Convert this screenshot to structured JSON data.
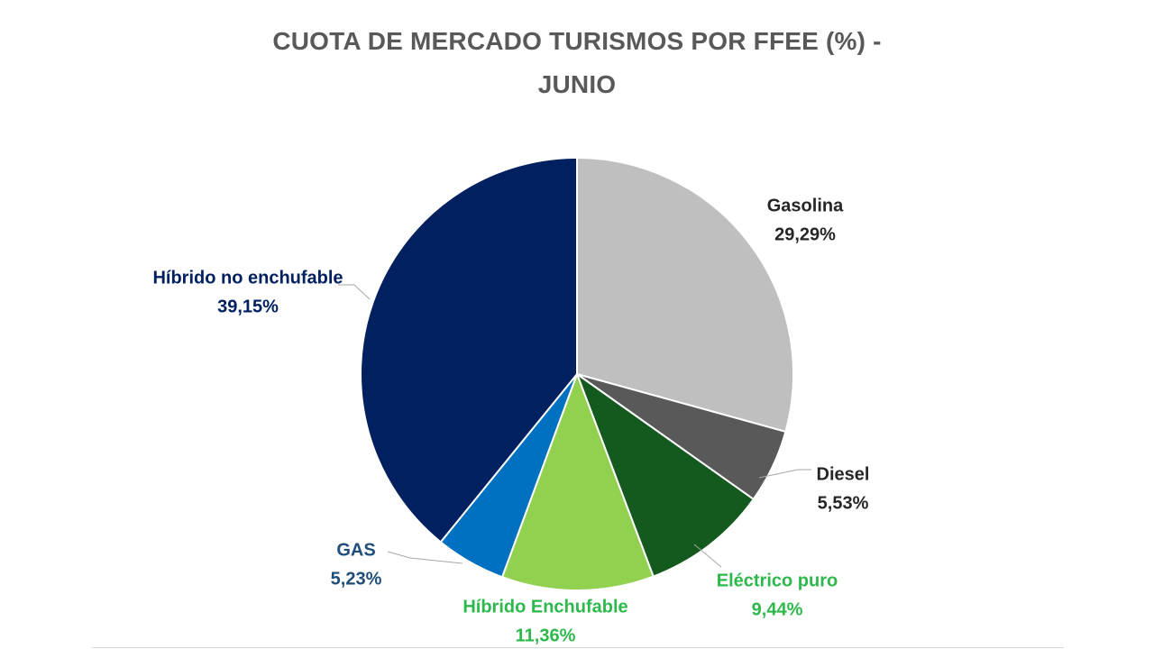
{
  "chart_data": {
    "type": "pie",
    "title_line1": "CUOTA DE MERCADO TURISMOS POR FFEE (%)  -",
    "title_line2": "JUNIO",
    "slices": [
      {
        "label": "Gasolina",
        "value": 29.29,
        "display": "29,29%",
        "color": "#bfbfbf",
        "label_color": "#262626"
      },
      {
        "label": "Diesel",
        "value": 5.53,
        "display": "5,53%",
        "color": "#595959",
        "label_color": "#262626"
      },
      {
        "label": "Eléctrico puro",
        "value": 9.44,
        "display": "9,44%",
        "color": "#145a1e",
        "label_color": "#2db84b"
      },
      {
        "label": "Híbrido Enchufable",
        "value": 11.36,
        "display": "11,36%",
        "color": "#92d050",
        "label_color": "#2db84b"
      },
      {
        "label": "GAS",
        "value": 5.23,
        "display": "5,23%",
        "color": "#0070c0",
        "label_color": "#1f4e79"
      },
      {
        "label": "Híbrido no enchufable",
        "value": 39.15,
        "display": "39,15%",
        "color": "#002060",
        "label_color": "#002060"
      }
    ]
  }
}
